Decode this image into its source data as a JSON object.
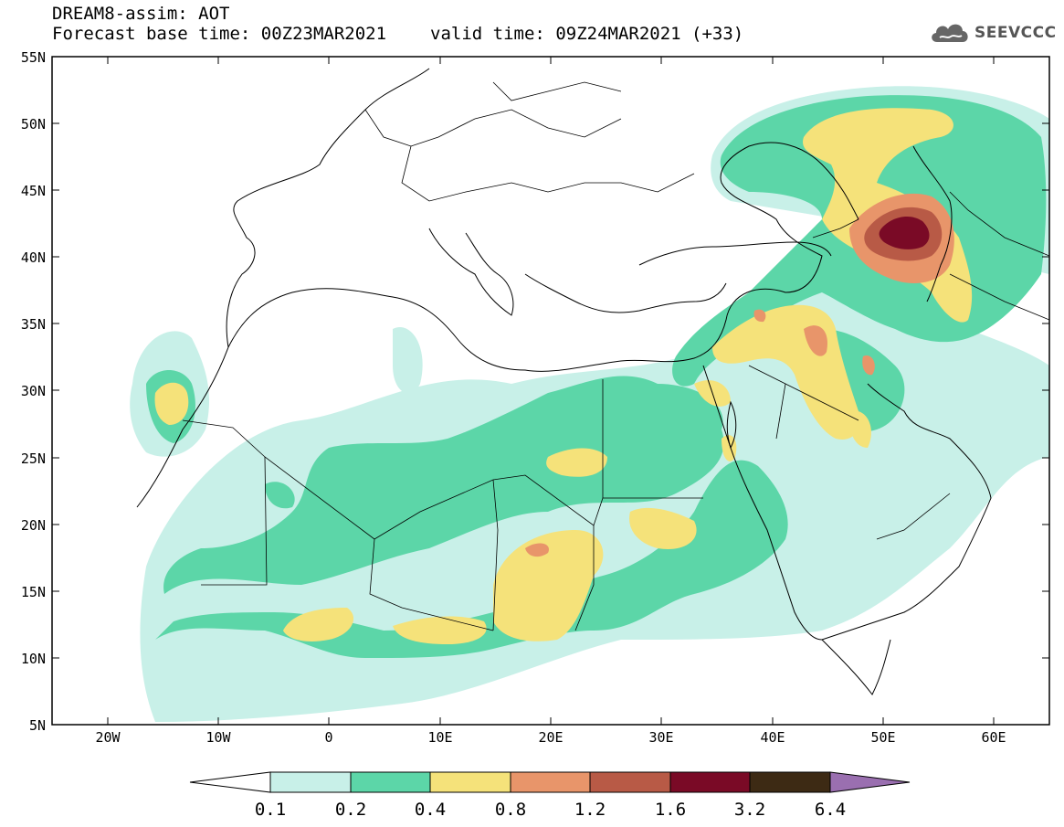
{
  "header": {
    "title": "DREAM8-assim: AOT",
    "base_time_label": "Forecast base time: 00Z23MAR2021",
    "valid_time_label": "valid time: 09Z24MAR2021 (+33)"
  },
  "logo": {
    "text": "SEEVCCC",
    "icon": "cloud-icon"
  },
  "axes": {
    "lon_range": [
      -25,
      65
    ],
    "lat_range": [
      5,
      55
    ],
    "lat_labels": [
      "55N",
      "50N",
      "45N",
      "40N",
      "35N",
      "30N",
      "25N",
      "20N",
      "15N",
      "10N",
      "5N"
    ],
    "lon_labels": [
      "20W",
      "10W",
      "0",
      "10E",
      "20E",
      "30E",
      "40E",
      "50E",
      "60E"
    ]
  },
  "colorbar": {
    "labels": [
      "0.1",
      "0.2",
      "0.4",
      "0.8",
      "1.2",
      "1.6",
      "3.2",
      "6.4"
    ],
    "colors": [
      "#c8f0e8",
      "#5cd6a8",
      "#f5e27a",
      "#e8956a",
      "#b85a46",
      "#7a0a26",
      "#3d2a14",
      "#9a6fb0"
    ],
    "below_color": "#ffffff"
  }
}
